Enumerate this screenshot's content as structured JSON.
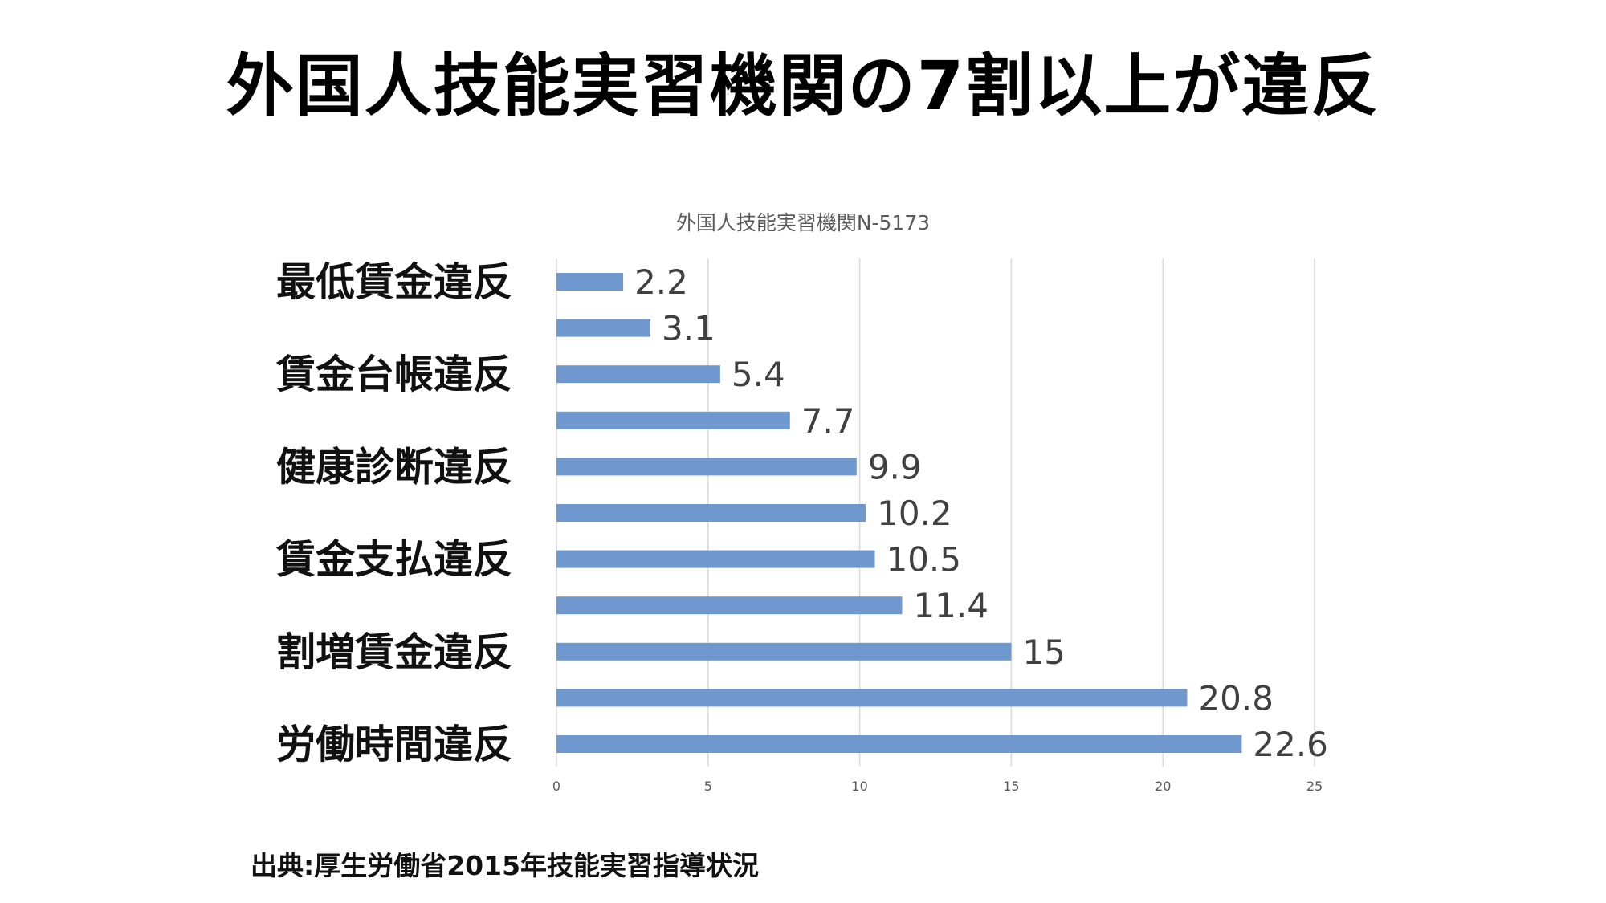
{
  "slide_title": "外国人技能実習機関の7割以上が違反",
  "source": "出典:厚生労働省2015年技能実習指導状況",
  "chart_data": {
    "type": "bar",
    "orientation": "horizontal",
    "title": "外国人技能実習機関N-5173",
    "categories": [
      "最低賃金違反",
      "",
      "賃金台帳違反",
      "",
      "健康診断違反",
      "",
      "賃金支払違反",
      "",
      "割増賃金違反",
      "",
      "労働時間違反"
    ],
    "values": [
      2.2,
      3.1,
      5.4,
      7.7,
      9.9,
      10.2,
      10.5,
      11.4,
      15,
      20.8,
      22.6
    ],
    "data_labels": [
      "2.2",
      "3.1",
      "5.4",
      "7.7",
      "9.9",
      "10.2",
      "10.5",
      "11.4",
      "15",
      "20.8",
      "22.6"
    ],
    "xlim": [
      0,
      25
    ],
    "xticks": [
      "0",
      "5",
      "10",
      "15",
      "20",
      "25"
    ],
    "grid": true,
    "bar_color": "#6f98cf",
    "grid_color": "#d9d9d9"
  }
}
